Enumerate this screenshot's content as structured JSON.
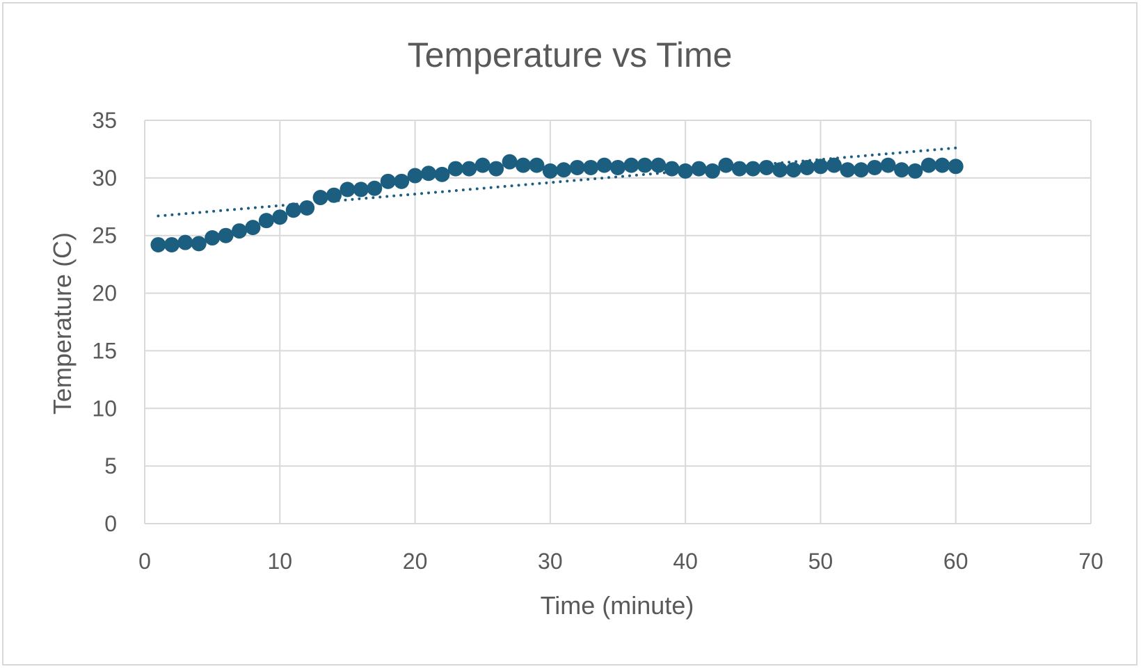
{
  "chart_data": {
    "type": "scatter",
    "title": "Temperature vs Time",
    "xlabel": "Time (minute)",
    "ylabel": "Temperature (C)",
    "xlim": [
      0,
      70
    ],
    "ylim": [
      0,
      35
    ],
    "xticks": [
      0,
      10,
      20,
      30,
      40,
      50,
      60,
      70
    ],
    "yticks": [
      0,
      5,
      10,
      15,
      20,
      25,
      30,
      35
    ],
    "grid": true,
    "legend": "none",
    "marker_color": "#1b5e80",
    "trendline": {
      "type": "linear",
      "style": "dotted",
      "color": "#1b5e80",
      "x": [
        1,
        60
      ],
      "y": [
        26.7,
        32.6
      ]
    },
    "series": [
      {
        "x": [
          1,
          2,
          3,
          4,
          5,
          6,
          7,
          8,
          9,
          10,
          11,
          12,
          13,
          14,
          15,
          16,
          17,
          18,
          19,
          20,
          21,
          22,
          23,
          24,
          25,
          26,
          27,
          28,
          29,
          30,
          31,
          32,
          33,
          34,
          35,
          36,
          37,
          38,
          39,
          40,
          41,
          42,
          43,
          44,
          45,
          46,
          47,
          48,
          49,
          50,
          51,
          52,
          53,
          54,
          55,
          56,
          57,
          58,
          59,
          60
        ],
        "y": [
          24.2,
          24.2,
          24.4,
          24.3,
          24.8,
          25.0,
          25.4,
          25.7,
          26.3,
          26.6,
          27.2,
          27.4,
          28.3,
          28.5,
          29.0,
          29.0,
          29.1,
          29.7,
          29.7,
          30.2,
          30.4,
          30.3,
          30.8,
          30.8,
          31.1,
          30.8,
          31.4,
          31.1,
          31.1,
          30.6,
          30.7,
          30.9,
          30.9,
          31.1,
          30.9,
          31.1,
          31.1,
          31.1,
          30.8,
          30.6,
          30.8,
          30.6,
          31.1,
          30.8,
          30.8,
          30.9,
          30.7,
          30.7,
          30.9,
          31.0,
          31.1,
          30.7,
          30.7,
          30.9,
          31.1,
          30.7,
          30.6,
          31.1,
          31.1,
          31.0
        ]
      }
    ]
  }
}
